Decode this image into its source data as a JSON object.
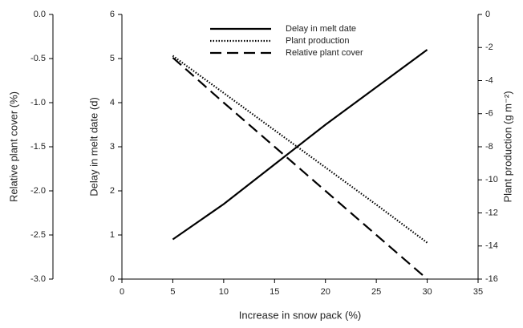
{
  "chart_data": {
    "type": "line",
    "x_label": "Increase in snow pack (%)",
    "y_label": "Delay in melt date (d)",
    "y2_label": "Plant production (g m⁻²)",
    "y3_label": "Relative plant cover (%)",
    "x": [
      5,
      10,
      15,
      20,
      25,
      30
    ],
    "series": [
      {
        "name": "Delay in melt date",
        "color": "#000000",
        "style": "solid",
        "values": [
          0.9,
          1.7,
          2.6,
          3.5,
          4.35,
          5.2
        ]
      },
      {
        "name": "Plant production",
        "color": "#000000",
        "style": "dotted",
        "axis": "y2",
        "values": [
          -2.5,
          -4.75,
          -7.0,
          -9.25,
          -11.5,
          -13.8
        ]
      },
      {
        "name": "Relative plant cover",
        "color": "#000000",
        "style": "dashed",
        "axis": "y3",
        "values": [
          -0.49,
          -1.0,
          -1.5,
          -2.0,
          -2.5,
          -3.0
        ]
      }
    ],
    "xlim": [
      0,
      35
    ],
    "xticks": [
      0,
      5,
      10,
      15,
      20,
      25,
      30,
      35
    ],
    "ylim": [
      0,
      6
    ],
    "yticks": [
      0,
      1,
      2,
      3,
      4,
      5,
      6
    ],
    "y2lim": [
      -16,
      0
    ],
    "y2ticks": [
      0,
      -2,
      -4,
      -6,
      -8,
      -10,
      -12,
      -14,
      -16
    ],
    "y3lim": [
      -3,
      0
    ],
    "y3ticks": [
      {
        "value": 0,
        "label": "0.0"
      },
      -0.5,
      {
        "value": -1,
        "label": "-1.0"
      },
      -1.5,
      {
        "value": -2,
        "label": "-2.0"
      },
      -2.5,
      {
        "value": -3,
        "label": "-3.0"
      }
    ],
    "legend": "top"
  }
}
